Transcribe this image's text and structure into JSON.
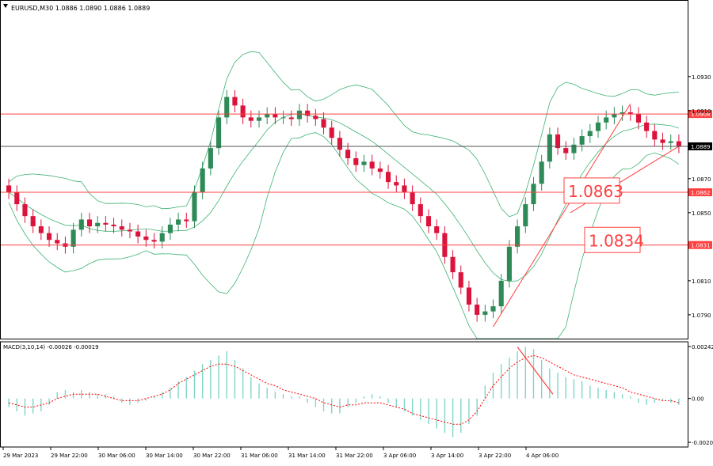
{
  "header": {
    "symbol_line": "EURUSD,M30  1.0886 1.0890 1.0886 1.0889"
  },
  "macd": {
    "label": "MACD(3,10,14) -0.00026 -0.00019",
    "y_ticks": [
      "0.00242",
      "0.00",
      "-0.00204"
    ]
  },
  "colors": {
    "bull": "#2e8b57",
    "bear": "#dc143c",
    "bands": "#3cb371",
    "level_line": "#ff4040",
    "macd_hist": "#7fd6c9",
    "macd_signal": "#ff0000",
    "axis": "#000000",
    "grid": "#ffffff"
  },
  "chart_data": [
    {
      "type": "candlestick",
      "symbol": "EURUSD",
      "timeframe": "M30",
      "ylim": [
        1.0776,
        1.0975
      ],
      "y_ticks": [
        "1.0930",
        "1.0910",
        "1.0870",
        "1.0850",
        "1.0810",
        "1.0790"
      ],
      "x_ticks": [
        "29 Mar 2023",
        "29 Mar 22:00",
        "30 Mar 06:00",
        "30 Mar 14:00",
        "30 Mar 22:00",
        "31 Mar 06:00",
        "31 Mar 14:00",
        "31 Mar 22:00",
        "3 Apr 06:00",
        "3 Apr 14:00",
        "3 Apr 22:00",
        "4 Apr 06:00"
      ],
      "current_price": "1.0889",
      "levels": [
        {
          "label": "1.0908",
          "value": 1.0908
        },
        {
          "label": "1.0862",
          "value": 1.0862
        },
        {
          "label": "1.0831",
          "value": 1.0831
        }
      ],
      "annotations": [
        "1.0863",
        "1.0834"
      ],
      "closes": [
        1.0862,
        1.0855,
        1.0848,
        1.0842,
        1.0838,
        1.0834,
        1.0832,
        1.083,
        1.084,
        1.0846,
        1.0842,
        1.0844,
        1.0843,
        1.0842,
        1.084,
        1.0839,
        1.0836,
        1.0834,
        1.0833,
        1.0838,
        1.0843,
        1.0846,
        1.0845,
        1.0862,
        1.0876,
        1.0888,
        1.0906,
        1.0918,
        1.0913,
        1.0906,
        1.0904,
        1.0906,
        1.0908,
        1.0906,
        1.0906,
        1.0905,
        1.091,
        1.0907,
        1.0905,
        1.09,
        1.0894,
        1.0887,
        1.0882,
        1.0878,
        1.088,
        1.0876,
        1.0874,
        1.0868,
        1.0866,
        1.0862,
        1.0855,
        1.0848,
        1.0842,
        1.0838,
        1.0824,
        1.0815,
        1.0806,
        1.0796,
        1.079,
        1.0792,
        1.0795,
        1.081,
        1.083,
        1.0842,
        1.0855,
        1.0867,
        1.088,
        1.0896,
        1.0888,
        1.0885,
        1.089,
        1.0895,
        1.0898,
        1.0903,
        1.0906,
        1.0908,
        1.0909,
        1.0908,
        1.0903,
        1.0898,
        1.0893,
        1.0891,
        1.0892,
        1.0889
      ],
      "macd_histogram": [
        -0.0004,
        -0.0006,
        -0.0008,
        -0.0007,
        -0.0006,
        -0.0003,
        0.0003,
        0.0004,
        0.0003,
        0.0004,
        0.0003,
        0.0002,
        0.0002,
        0.0001,
        -0.0002,
        -0.0003,
        -0.0002,
        -0.0001,
        0.0001,
        0.0003,
        0.0005,
        0.0008,
        0.001,
        0.0013,
        0.0016,
        0.0018,
        0.002,
        0.0022,
        0.0018,
        0.0014,
        0.001,
        0.0007,
        0.0005,
        0.0003,
        0.0002,
        0.0001,
        0.0001,
        -0.0002,
        -0.0004,
        -0.0006,
        -0.0007,
        -0.0007,
        -0.0004,
        -0.0002,
        0.0001,
        0.0002,
        0.0001,
        -0.0002,
        -0.0004,
        -0.0006,
        -0.0008,
        -0.001,
        -0.0012,
        -0.0014,
        -0.0016,
        -0.0018,
        -0.0016,
        -0.0012,
        -0.0008,
        0.0006,
        0.0012,
        0.0016,
        0.0019,
        0.0022,
        0.0024,
        0.0023,
        0.0018,
        0.0014,
        0.0012,
        0.001,
        0.0009,
        0.0008,
        0.0006,
        0.0005,
        0.0004,
        0.0003,
        0.0002,
        0.0001,
        -0.0002,
        -0.0003,
        -0.0002,
        -0.0001,
        -0.0002,
        -0.0003
      ],
      "macd_signal": [
        -0.0002,
        -0.0003,
        -0.0004,
        -0.0004,
        -0.0003,
        -0.0002,
        0.0,
        0.0001,
        0.0002,
        0.0002,
        0.0002,
        0.0002,
        0.0001,
        0.0,
        -0.0001,
        -0.0001,
        -0.0001,
        0.0,
        0.0001,
        0.0002,
        0.0004,
        0.0007,
        0.0009,
        0.0011,
        0.0013,
        0.0015,
        0.0016,
        0.0016,
        0.0015,
        0.0013,
        0.0011,
        0.0009,
        0.0007,
        0.0006,
        0.0004,
        0.0003,
        0.0002,
        0.0001,
        0.0,
        -0.0002,
        -0.0003,
        -0.0004,
        -0.0003,
        -0.0003,
        -0.0002,
        -0.0002,
        -0.0002,
        -0.0003,
        -0.0004,
        -0.0005,
        -0.0007,
        -0.0008,
        -0.0009,
        -0.001,
        -0.0011,
        -0.0012,
        -0.0012,
        -0.001,
        -0.0006,
        0.0,
        0.0006,
        0.001,
        0.0014,
        0.0017,
        0.0019,
        0.002,
        0.0019,
        0.0017,
        0.0015,
        0.0013,
        0.0011,
        0.001,
        0.0009,
        0.0008,
        0.0007,
        0.0006,
        0.0005,
        0.0003,
        0.0002,
        0.0001,
        0.0,
        -0.0001,
        -0.0001,
        -0.0002
      ]
    }
  ]
}
